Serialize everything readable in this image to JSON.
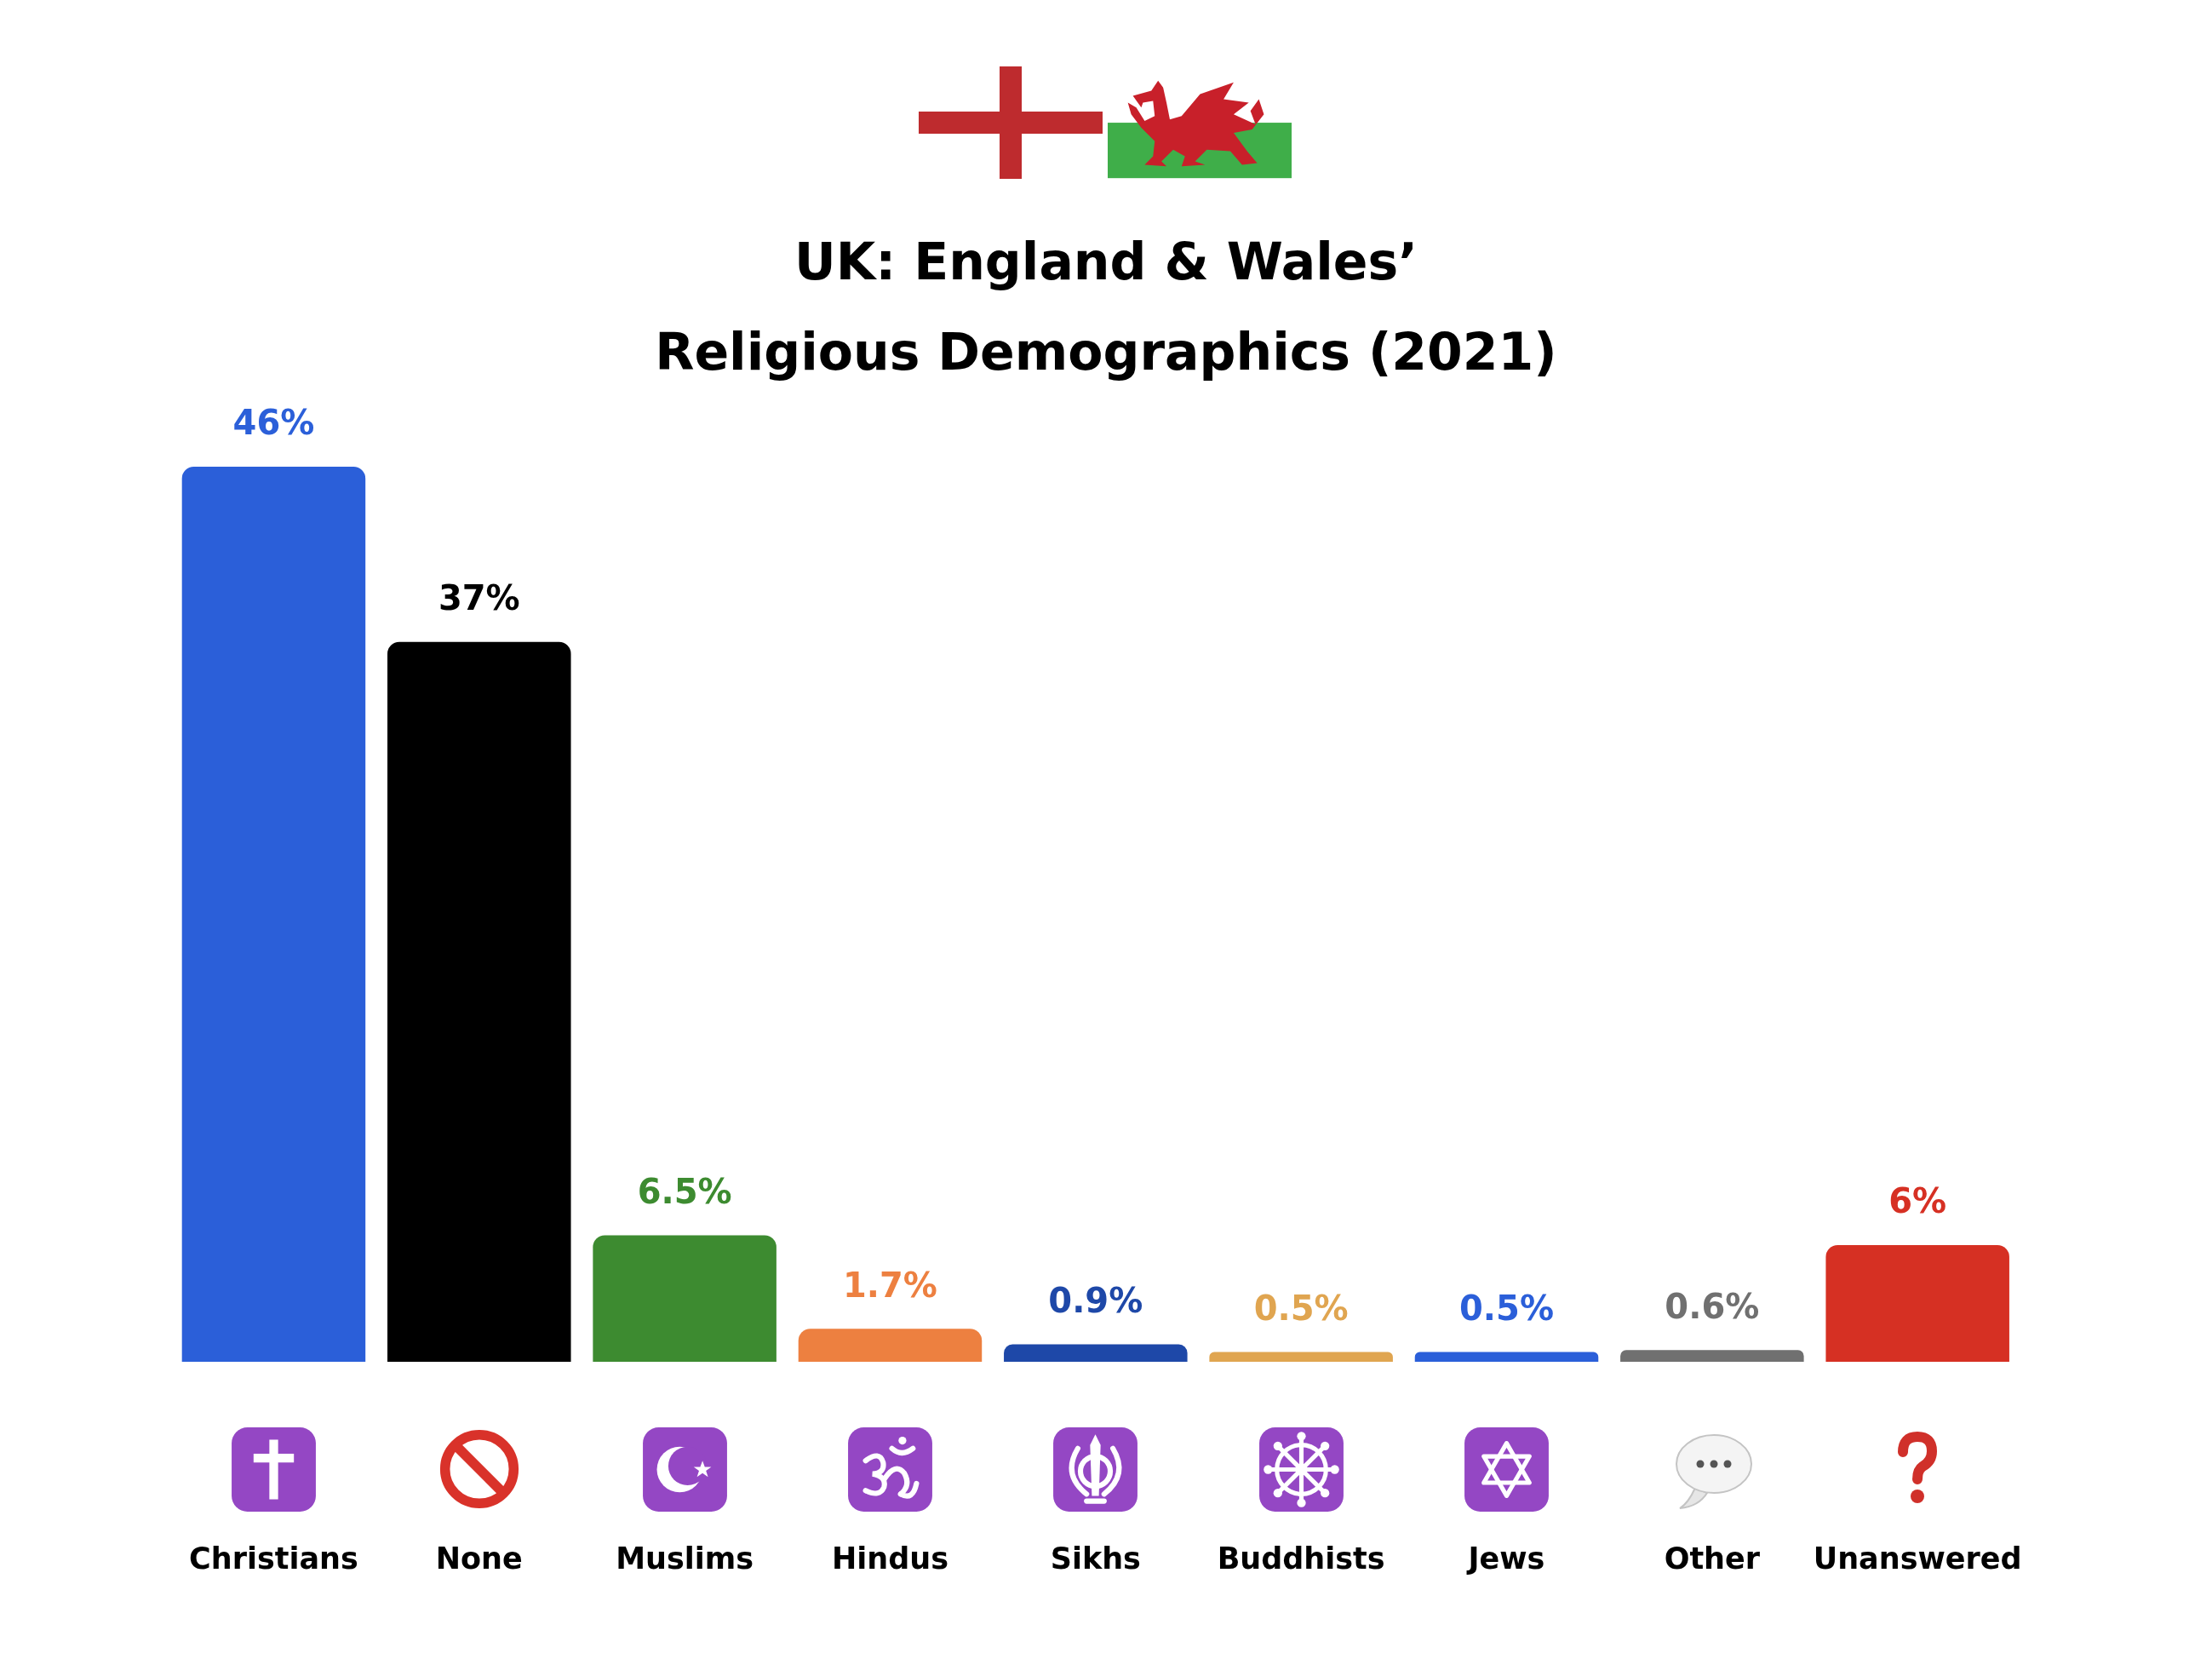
{
  "chart_data": {
    "type": "bar",
    "title": "UK: England & Wales’\nReligious Demographics (2021)",
    "categories": [
      "Christians",
      "None",
      "Muslims",
      "Hindus",
      "Sikhs",
      "Buddhists",
      "Jews",
      "Other",
      "Unanswered"
    ],
    "values": [
      46,
      37,
      6.5,
      1.7,
      0.9,
      0.5,
      0.5,
      0.6,
      6
    ],
    "colors": [
      "#2b5fd9",
      "#000000",
      "#3d8b30",
      "#ed8040",
      "#1e48a8",
      "#e0a550",
      "#2b5fd9",
      "#707070",
      "#d63023"
    ],
    "value_labels": [
      "46%",
      "37%",
      "6.5%",
      "1.7%",
      "0.9%",
      "0.5%",
      "0.5%",
      "0.6%",
      "6%"
    ],
    "tick_labels": "x",
    "grid": false,
    "legend": false
  }
}
